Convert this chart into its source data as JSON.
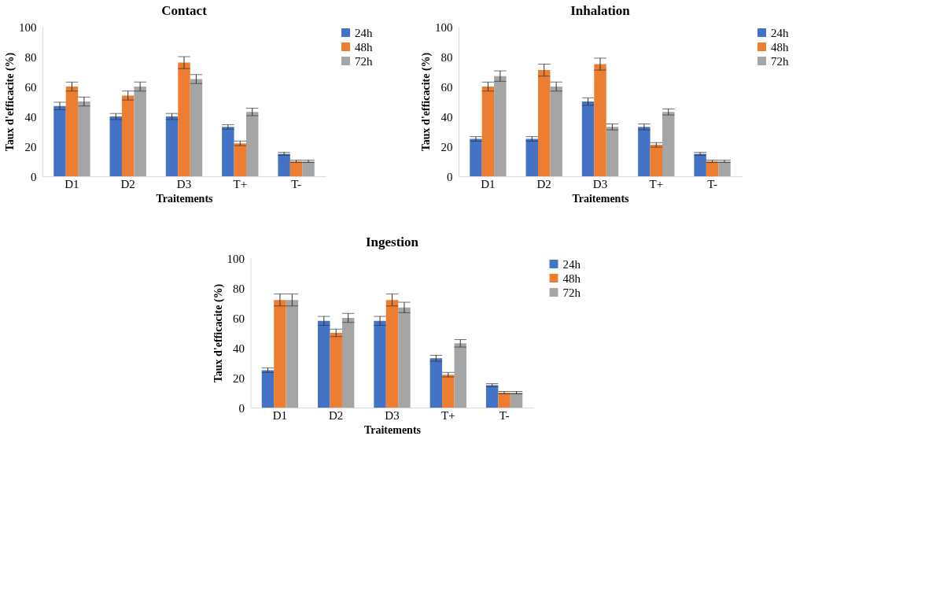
{
  "chart_data": [
    {
      "type": "bar",
      "title": "Contact",
      "xlabel": "Traitements",
      "ylabel": "Taux d'efficacite (%)",
      "categories": [
        "D1",
        "D2",
        "D3",
        "T+",
        "T-"
      ],
      "series": [
        {
          "name": "24h",
          "color": "#4472c4",
          "values": [
            47,
            40,
            40,
            33,
            15
          ],
          "errors": [
            2.5,
            2,
            2,
            1.5,
            1
          ]
        },
        {
          "name": "48h",
          "color": "#ed7d31",
          "values": [
            60,
            54,
            76,
            22,
            10
          ],
          "errors": [
            3,
            3,
            4,
            1.5,
            0.8
          ]
        },
        {
          "name": "72h",
          "color": "#a5a5a5",
          "values": [
            50,
            60,
            65,
            43,
            10
          ],
          "errors": [
            3,
            3,
            3,
            2.5,
            0.8
          ]
        }
      ],
      "ylim": [
        0,
        100
      ],
      "yticks": [
        0,
        20,
        40,
        60,
        80,
        100
      ],
      "grid": false,
      "legend": "right"
    },
    {
      "type": "bar",
      "title": "Inhalation",
      "xlabel": "Traitements",
      "ylabel": "Taux d'efficacite (%)",
      "categories": [
        "D1",
        "D2",
        "D3",
        "T+",
        "T-"
      ],
      "series": [
        {
          "name": "24h",
          "color": "#4472c4",
          "values": [
            25,
            25,
            50,
            33,
            15
          ],
          "errors": [
            1.5,
            1.5,
            2.5,
            2,
            1
          ]
        },
        {
          "name": "48h",
          "color": "#ed7d31",
          "values": [
            60,
            71,
            75,
            21,
            10
          ],
          "errors": [
            3,
            4,
            4,
            1.5,
            0.8
          ]
        },
        {
          "name": "72h",
          "color": "#a5a5a5",
          "values": [
            67,
            60,
            33,
            43,
            10
          ],
          "errors": [
            3.5,
            3,
            2,
            2,
            0.8
          ]
        }
      ],
      "ylim": [
        0,
        100
      ],
      "yticks": [
        0,
        20,
        40,
        60,
        80,
        100
      ],
      "grid": false,
      "legend": "right"
    },
    {
      "type": "bar",
      "title": "Ingestion",
      "xlabel": "Traitements",
      "ylabel": "Taux d'efficacite (%)",
      "categories": [
        "D1",
        "D2",
        "D3",
        "T+",
        "T-"
      ],
      "series": [
        {
          "name": "24h",
          "color": "#4472c4",
          "values": [
            25,
            58,
            58,
            33,
            15
          ],
          "errors": [
            1.5,
            3,
            3,
            2,
            1
          ]
        },
        {
          "name": "48h",
          "color": "#ed7d31",
          "values": [
            72,
            50,
            72,
            22,
            10
          ],
          "errors": [
            4,
            2.5,
            4,
            1.5,
            0.8
          ]
        },
        {
          "name": "72h",
          "color": "#a5a5a5",
          "values": [
            72,
            60,
            67,
            43,
            10
          ],
          "errors": [
            4,
            3,
            3.5,
            2.5,
            0.8
          ]
        }
      ],
      "ylim": [
        0,
        100
      ],
      "yticks": [
        0,
        20,
        40,
        60,
        80,
        100
      ],
      "grid": false,
      "legend": "right"
    }
  ]
}
